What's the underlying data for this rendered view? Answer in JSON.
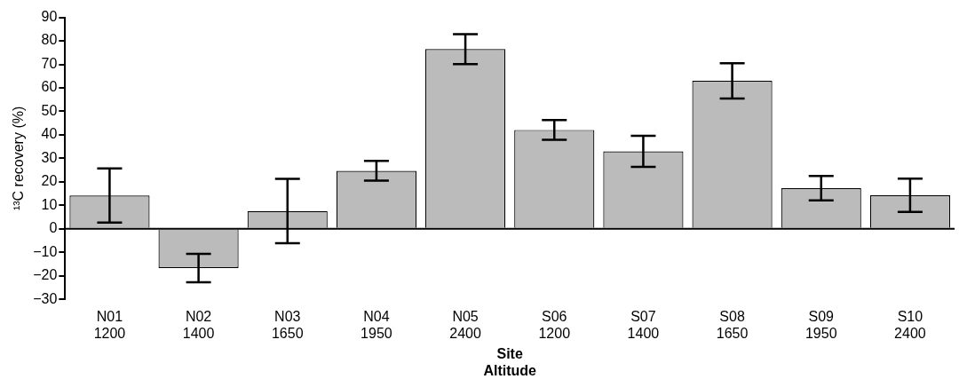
{
  "chart_data": {
    "type": "bar",
    "xlabel": "Site\nAltitude",
    "ylabel": "¹³C recovery (%)",
    "categories": [
      "N01\n1200",
      "N02\n1400",
      "N03\n1650",
      "N04\n1950",
      "N05\n2400",
      "S06\n1200",
      "S07\n1400",
      "S08\n1650",
      "S09\n1950",
      "S10\n2400"
    ],
    "values": [
      14.2,
      -16.7,
      7.6,
      24.7,
      76.5,
      42.1,
      33.0,
      63.0,
      17.3,
      14.3
    ],
    "errors": [
      11.5,
      6,
      13.7,
      4.2,
      6.4,
      4.2,
      6.6,
      7.5,
      5.2,
      7.1
    ],
    "color": "#bbbbbb",
    "ylim": [
      -30,
      90
    ],
    "yticks": [
      -30,
      -20,
      -10,
      0,
      10,
      20,
      30,
      40,
      50,
      60,
      70,
      80,
      90
    ],
    "legend": false
  }
}
